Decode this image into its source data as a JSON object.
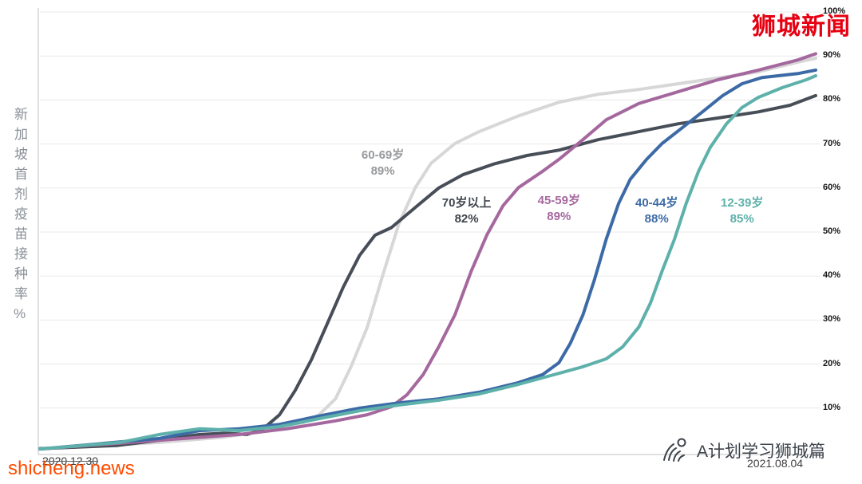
{
  "watermarks": {
    "top_right": "狮城新闻",
    "bottom_left": "shicheng.news",
    "bottom_right": "A计划学习狮城篇"
  },
  "axis": {
    "y_title": "新加坡首剂疫苗接种率%",
    "x_start_label": "2020.12.30",
    "x_end_label": "2021.08.04"
  },
  "chart_data": {
    "type": "line",
    "title": "",
    "xlabel": "",
    "ylabel": "新加坡首剂疫苗接种率%",
    "x_range_labels": [
      "2020.12.30",
      "2021.08.04"
    ],
    "ylim": [
      0,
      100
    ],
    "grid": true,
    "legend_position": "inline-annotations",
    "y_ticks": [
      {
        "label": "100%",
        "value": 100
      },
      {
        "label": "90%",
        "value": 90
      },
      {
        "label": "80%",
        "value": 80
      },
      {
        "label": "70%",
        "value": 70
      },
      {
        "label": "60%",
        "value": 60
      },
      {
        "label": "50%",
        "value": 50
      },
      {
        "label": "40%",
        "value": 40
      },
      {
        "label": "30%",
        "value": 30
      },
      {
        "label": "20%",
        "value": 20
      },
      {
        "label": "10%",
        "value": 10
      }
    ],
    "series": [
      {
        "name": "60-69岁",
        "final_rate": "89%",
        "color": "#d7d7d7",
        "x": [
          0,
          15.4,
          23.7,
          29.8,
          34,
          36,
          38.1,
          40.1,
          42.2,
          44.2,
          46.3,
          48.4,
          50.4,
          53.5,
          56.6,
          61.7,
          66.9,
          72,
          77.2,
          82.3,
          87.4,
          92.6,
          97.7,
          100
        ],
        "y": [
          0.7,
          2.2,
          3.4,
          4.9,
          6.7,
          8.5,
          12.1,
          19.4,
          28.4,
          40.2,
          52,
          60.1,
          65.6,
          70.1,
          72.8,
          76.4,
          79.5,
          81.3,
          82.4,
          83.7,
          85,
          86.4,
          88.6,
          89.5
        ]
      },
      {
        "name": "70岁以上",
        "final_rate": "82%",
        "color": "#474e57",
        "x": [
          0,
          10,
          15.4,
          20.6,
          23.7,
          26.7,
          28.8,
          30.9,
          32.9,
          35,
          37,
          39.1,
          41.2,
          43.2,
          45.3,
          48.4,
          51.4,
          54.5,
          58.6,
          62.8,
          66.9,
          72,
          77.2,
          82.3,
          87.4,
          92.6,
          96.7,
          100
        ],
        "y": [
          0.8,
          1.5,
          2.7,
          4,
          4.3,
          4,
          5.3,
          8.5,
          14,
          21,
          29,
          37.5,
          44.7,
          49.3,
          51,
          55.6,
          60,
          63,
          65.5,
          67.4,
          68.6,
          71,
          72.8,
          74.6,
          75.9,
          77.3,
          78.8,
          81
        ]
      },
      {
        "name": "45-59岁",
        "final_rate": "89%",
        "color": "#a5689e",
        "x": [
          0,
          25.7,
          31.9,
          38.1,
          42.2,
          45.3,
          47.3,
          49.4,
          51.4,
          53.5,
          55.6,
          57.6,
          59.7,
          61.7,
          64.8,
          66.9,
          70,
          73,
          77.2,
          82.3,
          87.4,
          92.6,
          97.7,
          100
        ],
        "y": [
          0.7,
          4,
          5.3,
          7.1,
          8.5,
          10.3,
          13,
          17.6,
          23.9,
          31.2,
          41.1,
          49.3,
          56,
          60.1,
          63.8,
          66.5,
          71,
          75.5,
          79.2,
          81.9,
          84.6,
          86.8,
          89.1,
          90.5
        ]
      },
      {
        "name": "40-44岁",
        "final_rate": "88%",
        "color": "#3c6aa6",
        "x": [
          0,
          15.4,
          20.6,
          25.7,
          30.9,
          36,
          41.2,
          46.3,
          51.4,
          56.6,
          61.7,
          64.8,
          66.9,
          68.4,
          70,
          71.5,
          73,
          74.6,
          76.1,
          78.2,
          80.2,
          82.8,
          85.4,
          88,
          90.5,
          93.1,
          97.7,
          100
        ],
        "y": [
          0.7,
          3.1,
          4.9,
          5.3,
          6.3,
          8.2,
          10,
          11.2,
          12.1,
          13.6,
          15.8,
          17.6,
          20.3,
          24.8,
          31.2,
          39.3,
          48.4,
          56.5,
          62,
          66.5,
          70.1,
          73.7,
          77.3,
          81,
          83.7,
          85.1,
          86,
          86.8
        ]
      },
      {
        "name": "12-39岁",
        "final_rate": "85%",
        "color": "#5db1aa",
        "x": [
          0,
          10.3,
          15.4,
          20.6,
          25.7,
          30.9,
          36,
          41.2,
          46.3,
          51.4,
          56.6,
          61.7,
          66.9,
          70,
          73,
          75.1,
          77.2,
          78.7,
          80.2,
          81.8,
          83.3,
          84.9,
          86.4,
          88.5,
          90.5,
          92.6,
          95.7,
          98.8,
          100
        ],
        "y": [
          0.7,
          2.2,
          4,
          5.3,
          4.9,
          5.8,
          7.6,
          9.4,
          10.7,
          11.8,
          13.2,
          15.4,
          17.9,
          19.4,
          21.2,
          23.9,
          28.4,
          33.9,
          41.1,
          48.4,
          56.5,
          63.8,
          69.2,
          74.6,
          78.3,
          80.6,
          82.8,
          84.6,
          85.5
        ]
      }
    ],
    "annotations": [
      {
        "text": "60-69岁",
        "rate": "89%",
        "color": "#97999c",
        "x": 44.2,
        "y": 65.5
      },
      {
        "text": "70岁以上",
        "rate": "82%",
        "color": "#3e444c",
        "x": 55,
        "y": 54.7
      },
      {
        "text": "45-59岁",
        "rate": "89%",
        "color": "#a5689e",
        "x": 66.9,
        "y": 55.3
      },
      {
        "text": "40-44岁",
        "rate": "88%",
        "color": "#3c6aa6",
        "x": 79.5,
        "y": 54.7
      },
      {
        "text": "12-39岁",
        "rate": "85%",
        "color": "#5db1aa",
        "x": 90.5,
        "y": 54.7
      }
    ]
  }
}
